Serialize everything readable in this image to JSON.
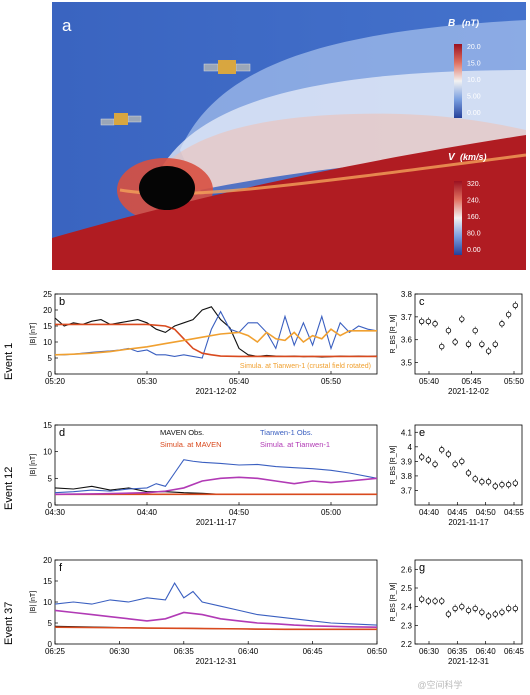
{
  "panel_a": {
    "label": "a",
    "cb_B": {
      "title_sym": "B",
      "title_unit": "(nT)",
      "ticks": [
        "20.0",
        "15.0",
        "10.0",
        "5.00",
        "0.00"
      ]
    },
    "cb_V": {
      "title_sym": "V",
      "title_unit": "(km/s)",
      "ticks": [
        "320.",
        "240.",
        "160.",
        "80.0",
        "0.00"
      ]
    }
  },
  "row_labels": [
    "Event 1",
    "Event 12",
    "Event 37"
  ],
  "watermark": "@空间科学",
  "chart_data": [
    {
      "type": "line",
      "panel": "b",
      "ylabel": "|B| [nT]",
      "ylim": [
        0,
        25
      ],
      "yticks": [
        0,
        5,
        10,
        15,
        20,
        25
      ],
      "xticks": [
        "05:20",
        "05:30",
        "05:40",
        "05:50"
      ],
      "xlabel": "2021-12-02",
      "annotation": "Simula. at Tianwen-1 (crustal field rotated)",
      "series": [
        {
          "color": "#111111",
          "x": [
            0,
            1,
            2,
            3,
            4,
            5,
            6,
            7,
            8,
            9,
            10,
            11,
            12,
            13,
            14,
            15,
            16,
            17,
            18,
            19,
            20,
            21,
            22,
            23,
            24,
            25,
            26,
            27,
            28,
            29,
            30,
            31,
            32,
            33,
            34,
            35
          ],
          "values": [
            17.5,
            15,
            16,
            15.5,
            16.5,
            17,
            15.5,
            16,
            16.5,
            17,
            16,
            14,
            13,
            15,
            16,
            17,
            20,
            21,
            17,
            14.5,
            8,
            6,
            5.5,
            5.8,
            5.6,
            5.5,
            5.6,
            5.4,
            5.5,
            5.3,
            5.4,
            5.6,
            5.5,
            5.6,
            5.5,
            5.6
          ]
        },
        {
          "color": "#3a5fc0",
          "x": [
            0,
            1,
            2,
            3,
            4,
            5,
            6,
            7,
            8,
            9,
            10,
            11,
            12,
            13,
            14,
            15,
            16,
            17,
            18,
            19,
            20,
            21,
            22,
            23,
            24,
            25,
            26,
            27,
            28,
            29,
            30,
            31,
            32,
            33,
            34,
            35
          ],
          "values": [
            6,
            6,
            6.2,
            6.5,
            6.8,
            7,
            7.2,
            7.5,
            8,
            7,
            7.5,
            6,
            6,
            5.5,
            6,
            5.5,
            5,
            14,
            19.5,
            14,
            13,
            16,
            16,
            13,
            8,
            18,
            9,
            16,
            9,
            18,
            8,
            16,
            13,
            15,
            14,
            13.5
          ]
        },
        {
          "color": "#d94a1e",
          "x": [
            0,
            2,
            4,
            6,
            8,
            10,
            12,
            13,
            14,
            15,
            16,
            17,
            18,
            20,
            22,
            24,
            26,
            28,
            30,
            32,
            35
          ],
          "values": [
            15.5,
            15.5,
            15.5,
            15.5,
            15.5,
            15.5,
            15,
            14,
            11,
            8,
            6.5,
            6,
            5.6,
            5.5,
            5.5,
            5.5,
            5.5,
            5.5,
            5.5,
            5.5,
            5.5
          ]
        },
        {
          "color": "#f0a030",
          "x": [
            0,
            2,
            4,
            6,
            8,
            10,
            12,
            14,
            16,
            18,
            20,
            21,
            22,
            23,
            24,
            25,
            26,
            27,
            28,
            29,
            30,
            31,
            32,
            35
          ],
          "values": [
            6,
            6.2,
            6.5,
            7,
            7.8,
            8.5,
            9.5,
            10.5,
            11.5,
            12.5,
            13,
            12,
            10,
            13,
            11,
            10.5,
            13,
            10,
            12,
            11,
            14,
            12,
            13.5,
            13.5
          ]
        }
      ]
    },
    {
      "type": "scatter",
      "panel": "c",
      "ylabel": "R_BS [R_M]",
      "ylim": [
        3.45,
        3.8
      ],
      "yticks": [
        3.5,
        3.6,
        3.7,
        3.8
      ],
      "xticks": [
        "05:40",
        "05:45",
        "05:50"
      ],
      "xlabel": "2021-12-02",
      "x": [
        0,
        1,
        2,
        3,
        4,
        5,
        6,
        7,
        8,
        9,
        10,
        11,
        12,
        13,
        14
      ],
      "values": [
        3.68,
        3.68,
        3.67,
        3.57,
        3.64,
        3.59,
        3.69,
        3.58,
        3.64,
        3.58,
        3.55,
        3.58,
        3.67,
        3.71,
        3.75
      ]
    },
    {
      "type": "line",
      "panel": "d",
      "ylabel": "|B| [nT]",
      "ylim": [
        0,
        15
      ],
      "yticks": [
        0,
        5,
        10,
        15
      ],
      "xticks": [
        "04:30",
        "04:40",
        "04:50",
        "05:00"
      ],
      "xlabel": "2021-11-17",
      "legend": [
        "MAVEN Obs.",
        "Tianwen-1 Obs.",
        "Simula. at MAVEN",
        "Simula. at Tianwen-1"
      ],
      "series": [
        {
          "name": "MAVEN Obs.",
          "color": "#111111",
          "x": [
            0,
            2,
            4,
            6,
            8,
            10,
            12,
            14,
            16,
            18,
            20,
            25,
            30,
            35
          ],
          "values": [
            3.2,
            3,
            3.5,
            2.8,
            3.2,
            2.5,
            2.5,
            2.3,
            2.2,
            2,
            2,
            2,
            2,
            2
          ]
        },
        {
          "name": "Tianwen-1 Obs.",
          "color": "#3a5fc0",
          "x": [
            0,
            2,
            4,
            6,
            8,
            10,
            11,
            12,
            13,
            14,
            15,
            16,
            18,
            20,
            22,
            24,
            26,
            28,
            30,
            32,
            35
          ],
          "values": [
            2.3,
            2.5,
            2.8,
            2.6,
            3,
            3.2,
            4,
            3.5,
            6,
            8.5,
            8.2,
            8,
            7.8,
            7.5,
            7.6,
            7.2,
            7,
            6.8,
            6.5,
            6,
            5
          ]
        },
        {
          "name": "Simula. at MAVEN",
          "color": "#d94a1e",
          "x": [
            0,
            5,
            10,
            15,
            20,
            25,
            30,
            35
          ],
          "values": [
            2,
            2,
            2,
            2,
            2,
            2,
            2,
            2
          ]
        },
        {
          "name": "Simula. at Tianwen-1",
          "color": "#b13ab5",
          "x": [
            0,
            5,
            10,
            12,
            14,
            16,
            18,
            20,
            22,
            24,
            26,
            28,
            30,
            32,
            35
          ],
          "values": [
            2,
            2.1,
            2.3,
            2.6,
            3.2,
            4.5,
            5,
            5.2,
            5,
            4.5,
            4,
            4.5,
            4.2,
            4.5,
            5
          ]
        }
      ]
    },
    {
      "type": "scatter",
      "panel": "e",
      "ylabel": "R_BS [R_M]",
      "ylim": [
        3.6,
        4.15
      ],
      "yticks": [
        3.7,
        3.8,
        3.9,
        4.0,
        4.1
      ],
      "xticks": [
        "04:40",
        "04:45",
        "04:50",
        "04:55"
      ],
      "xlabel": "2021-11-17",
      "x": [
        0,
        1,
        2,
        3,
        4,
        5,
        6,
        7,
        8,
        9,
        10,
        11,
        12,
        13,
        14
      ],
      "values": [
        3.93,
        3.91,
        3.88,
        3.98,
        3.95,
        3.88,
        3.9,
        3.82,
        3.78,
        3.76,
        3.76,
        3.73,
        3.74,
        3.74,
        3.75
      ]
    },
    {
      "type": "line",
      "panel": "f",
      "ylabel": "|B| [nT]",
      "ylim": [
        0,
        20
      ],
      "yticks": [
        0,
        5,
        10,
        15,
        20
      ],
      "xticks": [
        "06:25",
        "06:30",
        "06:35",
        "06:40",
        "06:45",
        "06:50"
      ],
      "xlabel": "2021-12-31",
      "series": [
        {
          "color": "#111111",
          "x": [
            0,
            5,
            10,
            15,
            20,
            25,
            30,
            35
          ],
          "values": [
            4.2,
            4,
            3.8,
            3.7,
            3.6,
            3.5,
            3.5,
            3.5
          ]
        },
        {
          "color": "#3a5fc0",
          "x": [
            0,
            2,
            4,
            6,
            8,
            10,
            12,
            13,
            14,
            15,
            16,
            18,
            20,
            22,
            24,
            26,
            28,
            30,
            32,
            35
          ],
          "values": [
            9.5,
            10,
            9.5,
            10.5,
            10,
            11,
            10.5,
            14.5,
            11,
            12.5,
            10,
            9,
            8,
            7,
            6.5,
            6,
            5.5,
            5,
            4.8,
            4.5
          ]
        },
        {
          "color": "#d94a1e",
          "x": [
            0,
            5,
            10,
            15,
            20,
            25,
            30,
            35
          ],
          "values": [
            4,
            3.9,
            3.8,
            3.7,
            3.6,
            3.5,
            3.5,
            3.5
          ]
        },
        {
          "color": "#b13ab5",
          "x": [
            0,
            2,
            4,
            6,
            8,
            10,
            12,
            14,
            16,
            18,
            20,
            22,
            24,
            26,
            28,
            30,
            32,
            35
          ],
          "values": [
            8,
            7.5,
            7,
            6.5,
            6,
            5.5,
            6,
            7.5,
            7,
            6,
            5.5,
            5,
            4.8,
            4.5,
            4.3,
            4.2,
            4.1,
            4
          ]
        }
      ]
    },
    {
      "type": "scatter",
      "panel": "g",
      "ylabel": "R_BS [R_M]",
      "ylim": [
        2.2,
        2.65
      ],
      "yticks": [
        2.2,
        2.3,
        2.4,
        2.5,
        2.6
      ],
      "xticks": [
        "06:30",
        "06:35",
        "06:40",
        "06:45"
      ],
      "xlabel": "2021-12-31",
      "x": [
        0,
        1,
        2,
        3,
        4,
        5,
        6,
        7,
        8,
        9,
        10,
        11,
        12,
        13,
        14
      ],
      "values": [
        2.44,
        2.43,
        2.43,
        2.43,
        2.36,
        2.39,
        2.4,
        2.38,
        2.39,
        2.37,
        2.35,
        2.36,
        2.37,
        2.39,
        2.39
      ]
    }
  ]
}
